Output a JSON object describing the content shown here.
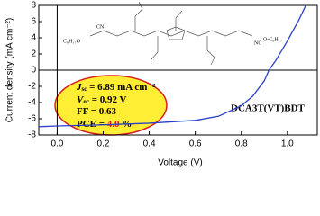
{
  "chart_data": {
    "type": "line",
    "x_label": "Voltage (V)",
    "y_label": "Current density (mA cm⁻²)",
    "x": [
      -0.08,
      0.0,
      0.2,
      0.4,
      0.6,
      0.7,
      0.8,
      0.85,
      0.9,
      0.92,
      0.95,
      1.0,
      1.05,
      1.08
    ],
    "series": [
      {
        "color": "#2a3fc8",
        "values": [
          -6.98,
          -6.89,
          -6.75,
          -6.55,
          -6.2,
          -5.7,
          -4.4,
          -3.2,
          -1.3,
          0,
          1.2,
          3.6,
          6.2,
          8
        ]
      }
    ],
    "xlim": [
      -0.08,
      1.13
    ],
    "ylim": [
      -8,
      8
    ],
    "xticks": [
      {
        "value": 0,
        "label": "0.0"
      },
      0.2,
      0.4,
      0.6,
      0.8,
      {
        "value": 1,
        "label": "1.0"
      }
    ],
    "yticks": [
      -8,
      -6,
      -4,
      -2,
      0,
      2,
      4,
      6,
      8
    ],
    "annotations": [
      {
        "symbol": "J",
        "subscript": "sc",
        "text": " = 6.89 mA cm⁻²"
      },
      {
        "symbol": "V",
        "subscript": "oc",
        "text": " = 0.92 V"
      },
      {
        "symbol": "FF",
        "text": " = 0.63"
      },
      {
        "symbol": "PCE",
        "text": " = ",
        "highlight": "4.0",
        "unit": " %"
      }
    ],
    "molecule": {
      "name": "DCA3T(VT)BDT",
      "left_group": "C₈H₁₇O",
      "left_cn": "CN",
      "right_nc": "NC",
      "right_group": "O-C₈H₁₇"
    }
  }
}
